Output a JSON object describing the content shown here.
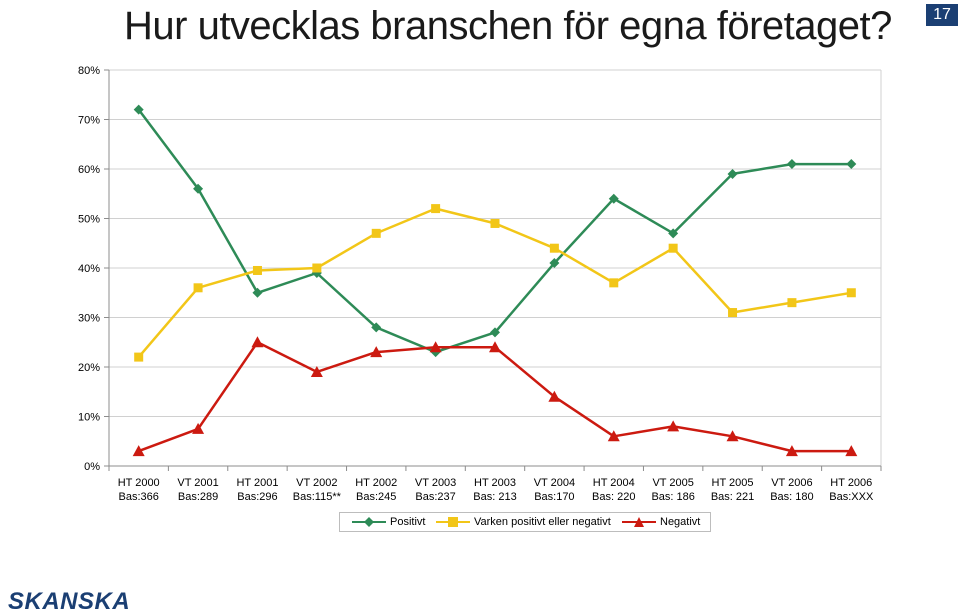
{
  "slide": {
    "title": "Hur utvecklas branschen för egna företaget?",
    "page_number": "17",
    "logo_text": "SKANSKA"
  },
  "colors": {
    "positivt": "#2e8b57",
    "varken": "#f2c618",
    "negativt": "#cc1a10",
    "grid": "#d0d0d0",
    "axis": "#8c8c8c",
    "brand": "#1b3f73"
  },
  "chart_data": {
    "type": "line",
    "title": "Hur utvecklas branschen för egna företaget?",
    "xlabel": "",
    "ylabel": "",
    "ylim": [
      0,
      80
    ],
    "y_ticks": [
      "0%",
      "10%",
      "20%",
      "30%",
      "40%",
      "50%",
      "60%",
      "70%",
      "80%"
    ],
    "grid": true,
    "legend_position": "bottom",
    "categories": [
      [
        "HT 2000",
        "Bas:366"
      ],
      [
        "VT 2001",
        "Bas:289"
      ],
      [
        "HT 2001",
        "Bas:296"
      ],
      [
        "VT 2002",
        "Bas:115**"
      ],
      [
        "HT 2002",
        "Bas:245"
      ],
      [
        "VT 2003",
        "Bas:237"
      ],
      [
        "HT 2003",
        "Bas: 213"
      ],
      [
        "VT 2004",
        "Bas:170"
      ],
      [
        "HT 2004",
        "Bas: 220"
      ],
      [
        "VT 2005",
        "Bas: 186"
      ],
      [
        "HT 2005",
        "Bas: 221"
      ],
      [
        "VT 2006",
        "Bas: 180"
      ],
      [
        "HT 2006",
        "Bas:XXX"
      ]
    ],
    "series": [
      {
        "name": "Positivt",
        "marker": "diamond",
        "color": "#2e8b57",
        "values": [
          72,
          56,
          35,
          39,
          28,
          23,
          27,
          41,
          54,
          47,
          59,
          61,
          61
        ]
      },
      {
        "name": "Varken positivt eller negativt",
        "marker": "square",
        "color": "#f2c618",
        "values": [
          22,
          36,
          39.5,
          40,
          47,
          52,
          49,
          44,
          37,
          44,
          31,
          33,
          35
        ]
      },
      {
        "name": "Negativt",
        "marker": "triangle",
        "color": "#cc1a10",
        "values": [
          3,
          7.5,
          25,
          19,
          23,
          24,
          24,
          14,
          6,
          8,
          6,
          3,
          3
        ]
      }
    ]
  }
}
